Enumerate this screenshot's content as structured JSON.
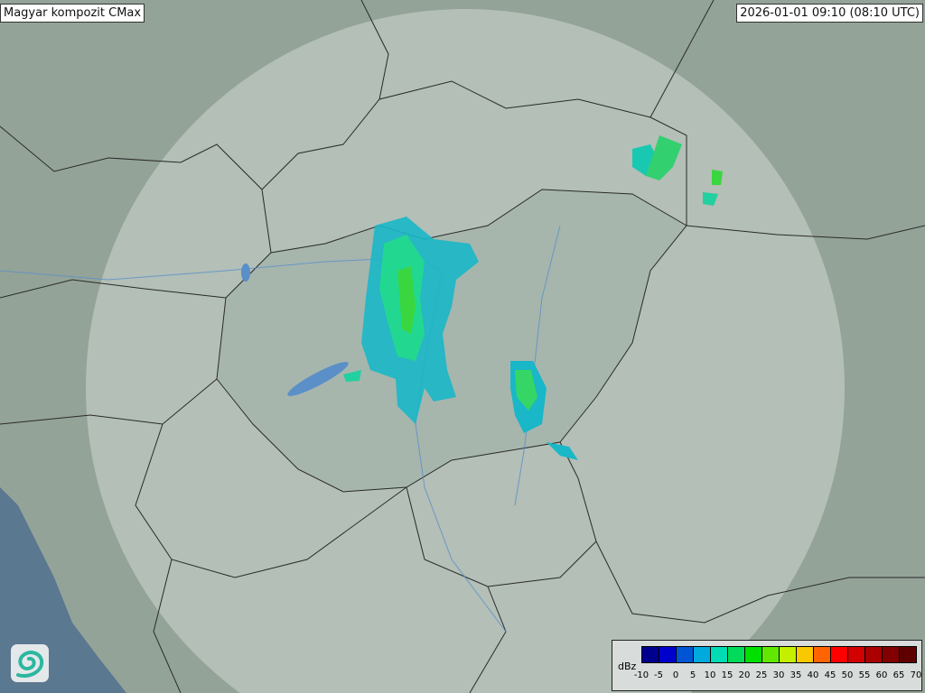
{
  "header": {
    "title": "Magyar kompozit  CMax",
    "timestamp": "2026-01-01 09:10 (08:10 UTC)"
  },
  "legend": {
    "unit": "dBz",
    "ticks": [
      "-10",
      "-5",
      "0",
      "5",
      "10",
      "15",
      "20",
      "25",
      "30",
      "35",
      "40",
      "45",
      "50",
      "55",
      "60",
      "65",
      "70"
    ],
    "colors": [
      "#00008e",
      "#0000cc",
      "#0055d4",
      "#00aadc",
      "#00dcb4",
      "#00dc5a",
      "#00e000",
      "#62e800",
      "#c4f000",
      "#f8c800",
      "#ff6400",
      "#ff0000",
      "#d20000",
      "#aa0000",
      "#820000",
      "#5e0000"
    ]
  },
  "map": {
    "land_color": "#93a398",
    "radar_coverage_color": "#c9d3cd",
    "sea_color": "#5b7891",
    "border_color": "#2a2a2a",
    "river_color": "#5a8fc8"
  },
  "logo": {
    "icon": "swirl-logo-icon"
  }
}
